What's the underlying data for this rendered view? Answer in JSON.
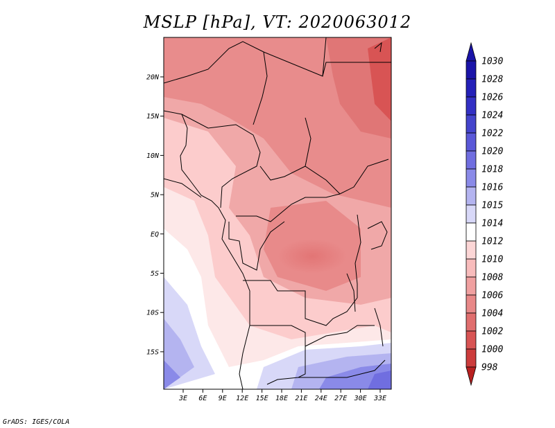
{
  "title": "MSLP [hPa], VT: 2020063012",
  "credit": "GrADS: IGES/COLA",
  "map": {
    "lon_ticks": [
      "3E",
      "6E",
      "9E",
      "12E",
      "15E",
      "18E",
      "21E",
      "24E",
      "27E",
      "30E",
      "33E"
    ],
    "lat_ticks": [
      "20N",
      "15N",
      "10N",
      "5N",
      "EQ",
      "5S",
      "10S",
      "15S"
    ]
  },
  "colorbar": {
    "levels": [
      "1030",
      "1028",
      "1026",
      "1024",
      "1022",
      "1020",
      "1018",
      "1016",
      "1015",
      "1014",
      "1012",
      "1010",
      "1008",
      "1006",
      "1004",
      "1002",
      "1000",
      "998"
    ],
    "colors": [
      "#1a14a8",
      "#2420b8",
      "#3330c4",
      "#4444cc",
      "#5a58d8",
      "#706ee0",
      "#8a8ae8",
      "#b4b4f0",
      "#d8d8f8",
      "#ffffff",
      "#fcd6d6",
      "#f8bcbc",
      "#f0a0a0",
      "#e88888",
      "#e06e6e",
      "#d85454",
      "#cc3c3c",
      "#b82020"
    ],
    "top_arrow_color": "#1a14a8",
    "bottom_arrow_color": "#b82020"
  }
}
